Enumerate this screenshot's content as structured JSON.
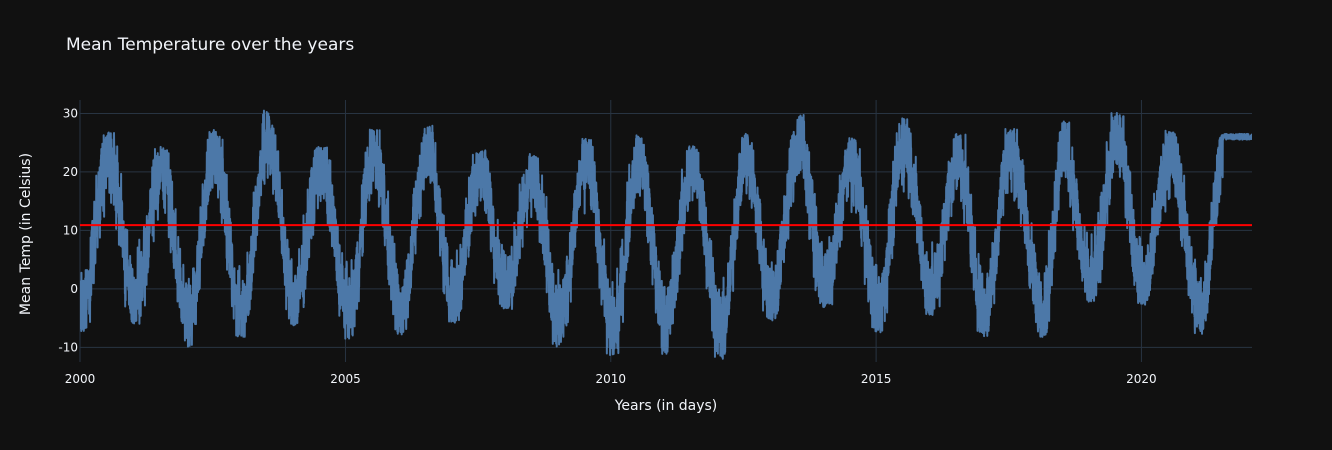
{
  "chart_data": {
    "type": "line",
    "title": "Mean Temperature over the years",
    "xlabel": "Years (in days)",
    "ylabel": "Mean Temp (in Celsius)",
    "x_range": [
      "2000-01-01",
      "2022-01-31"
    ],
    "ylim": [
      -12.5,
      32.3
    ],
    "x_ticks": [
      {
        "date": "2000-01-01",
        "label": "2000"
      },
      {
        "date": "2005-01-01",
        "label": "2005"
      },
      {
        "date": "2010-01-01",
        "label": "2010"
      },
      {
        "date": "2015-01-01",
        "label": "2015"
      },
      {
        "date": "2020-01-01",
        "label": "2020"
      }
    ],
    "y_ticks": [
      -10,
      0,
      10,
      20,
      30
    ],
    "grid": true,
    "series": [
      {
        "color": "#4c78a8",
        "kind": "daily-mean-temperature",
        "seasonal_peaks": [
          {
            "date": "2000-07-15",
            "value": 26.5
          },
          {
            "date": "2001-07-15",
            "value": 23.8
          },
          {
            "date": "2002-07-15",
            "value": 26.8
          },
          {
            "date": "2003-07-20",
            "value": 30.0
          },
          {
            "date": "2004-07-15",
            "value": 24.0
          },
          {
            "date": "2005-07-15",
            "value": 26.8
          },
          {
            "date": "2006-07-20",
            "value": 27.6
          },
          {
            "date": "2007-07-15",
            "value": 23.2
          },
          {
            "date": "2008-07-15",
            "value": 22.6
          },
          {
            "date": "2009-07-15",
            "value": 25.2
          },
          {
            "date": "2010-07-15",
            "value": 25.8
          },
          {
            "date": "2011-07-15",
            "value": 24.0
          },
          {
            "date": "2012-07-15",
            "value": 26.2
          },
          {
            "date": "2013-07-20",
            "value": 29.4
          },
          {
            "date": "2014-07-15",
            "value": 25.3
          },
          {
            "date": "2015-07-15",
            "value": 28.9
          },
          {
            "date": "2016-07-15",
            "value": 26.0
          },
          {
            "date": "2017-07-15",
            "value": 27.0
          },
          {
            "date": "2018-07-15",
            "value": 28.5
          },
          {
            "date": "2019-07-20",
            "value": 29.6
          },
          {
            "date": "2020-07-15",
            "value": 26.6
          },
          {
            "date": "2021-07-15",
            "value": 26.0
          }
        ],
        "seasonal_troughs": [
          {
            "date": "2000-01-10",
            "value": -7.2
          },
          {
            "date": "2001-01-15",
            "value": -5.5
          },
          {
            "date": "2002-01-15",
            "value": -9.4
          },
          {
            "date": "2003-01-15",
            "value": -8.0
          },
          {
            "date": "2004-01-15",
            "value": -5.8
          },
          {
            "date": "2005-01-25",
            "value": -8.0
          },
          {
            "date": "2006-01-15",
            "value": -7.4
          },
          {
            "date": "2007-01-15",
            "value": -5.5
          },
          {
            "date": "2008-01-15",
            "value": -3.0
          },
          {
            "date": "2009-01-10",
            "value": -9.5
          },
          {
            "date": "2010-01-15",
            "value": -11.2
          },
          {
            "date": "2011-01-10",
            "value": -10.8
          },
          {
            "date": "2012-02-05",
            "value": -11.6
          },
          {
            "date": "2013-01-15",
            "value": -5.0
          },
          {
            "date": "2014-01-15",
            "value": -2.8
          },
          {
            "date": "2015-01-15",
            "value": -7.0
          },
          {
            "date": "2016-01-15",
            "value": -4.0
          },
          {
            "date": "2017-01-15",
            "value": -7.6
          },
          {
            "date": "2018-02-25",
            "value": -7.8
          },
          {
            "date": "2019-01-15",
            "value": -2.0
          },
          {
            "date": "2020-01-15",
            "value": -2.2
          },
          {
            "date": "2021-02-10",
            "value": -7.2
          }
        ]
      },
      {
        "color": "#ff0000",
        "kind": "overall-mean",
        "values": [
          10.9
        ]
      }
    ]
  }
}
